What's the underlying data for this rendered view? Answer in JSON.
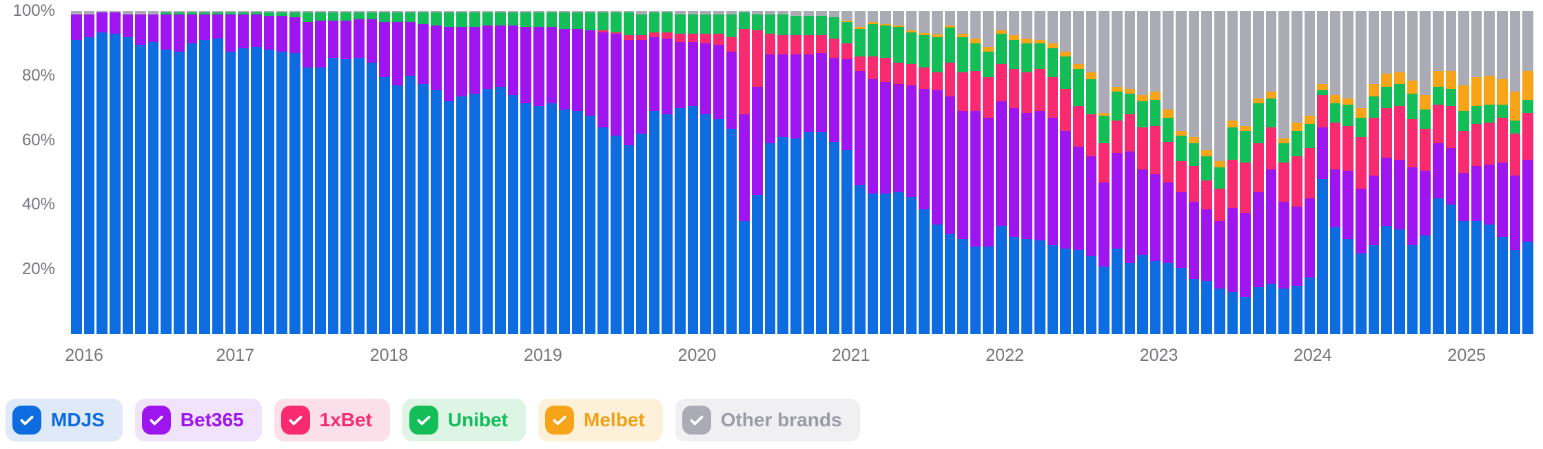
{
  "chart_data": {
    "type": "bar",
    "stacked": true,
    "normalized": "percent",
    "title": "",
    "grid": false,
    "legend_position": "bottom-left",
    "ylim": [
      0,
      100
    ],
    "y_tick_labels": [
      "100%",
      "80%",
      "60%",
      "40%",
      "20%"
    ],
    "x_tick_labels": [
      "2016",
      "2017",
      "2018",
      "2019",
      "2020",
      "2021",
      "2022",
      "2023",
      "2024",
      "2025"
    ],
    "months": [
      "2016-01",
      "2016-02",
      "2016-03",
      "2016-04",
      "2016-05",
      "2016-06",
      "2016-07",
      "2016-08",
      "2016-09",
      "2016-10",
      "2016-11",
      "2016-12",
      "2017-01",
      "2017-02",
      "2017-03",
      "2017-04",
      "2017-05",
      "2017-06",
      "2017-07",
      "2017-08",
      "2017-09",
      "2017-10",
      "2017-11",
      "2017-12",
      "2018-01",
      "2018-02",
      "2018-03",
      "2018-04",
      "2018-05",
      "2018-06",
      "2018-07",
      "2018-08",
      "2018-09",
      "2018-10",
      "2018-11",
      "2018-12",
      "2019-01",
      "2019-02",
      "2019-03",
      "2019-04",
      "2019-05",
      "2019-06",
      "2019-07",
      "2019-08",
      "2019-09",
      "2019-10",
      "2019-11",
      "2019-12",
      "2020-01",
      "2020-02",
      "2020-03",
      "2020-04",
      "2020-05",
      "2020-06",
      "2020-07",
      "2020-08",
      "2020-09",
      "2020-10",
      "2020-11",
      "2020-12",
      "2021-01",
      "2021-02",
      "2021-03",
      "2021-04",
      "2021-05",
      "2021-06",
      "2021-07",
      "2021-08",
      "2021-09",
      "2021-10",
      "2021-11",
      "2021-12",
      "2022-01",
      "2022-02",
      "2022-03",
      "2022-04",
      "2022-05",
      "2022-06",
      "2022-07",
      "2022-08",
      "2022-09",
      "2022-10",
      "2022-11",
      "2022-12",
      "2023-01",
      "2023-02",
      "2023-03",
      "2023-04",
      "2023-05",
      "2023-06",
      "2023-07",
      "2023-08",
      "2023-09",
      "2023-10",
      "2023-11",
      "2023-12",
      "2024-01",
      "2024-02",
      "2024-03",
      "2024-04",
      "2024-05",
      "2024-06",
      "2024-07",
      "2024-08",
      "2024-09",
      "2024-10",
      "2024-11",
      "2024-12",
      "2025-01",
      "2025-02",
      "2025-03",
      "2025-04",
      "2025-05",
      "2025-06"
    ],
    "series": [
      {
        "name": "MDJS",
        "color": "#0d6ce0",
        "values": [
          91,
          92,
          93.5,
          93,
          92,
          89.5,
          90.5,
          88,
          87.5,
          90,
          91,
          91.5,
          87.5,
          88.5,
          89,
          88,
          87.5,
          87,
          82.5,
          82.5,
          85.5,
          85,
          85.5,
          84,
          79.5,
          77,
          80,
          77.5,
          75.5,
          72,
          73.5,
          74.5,
          76,
          76.5,
          74,
          71.5,
          70.5,
          71.5,
          69.5,
          69,
          67.5,
          64,
          61.5,
          58.5,
          62,
          69,
          68,
          70,
          70.5,
          68,
          66.5,
          63.5,
          35,
          43,
          59,
          61,
          60.5,
          62.5,
          62.5,
          59.5,
          57,
          46,
          43.5,
          43.5,
          44,
          42.5,
          38.5,
          34,
          31,
          29.5,
          27,
          27,
          33.5,
          30,
          29.5,
          29,
          27.5,
          26.5,
          26,
          24,
          21,
          26.5,
          22,
          24.5,
          22.5,
          22,
          20.5,
          17,
          16.5,
          14,
          13,
          11.5,
          14.5,
          15.5,
          14,
          15,
          17.5,
          48,
          33,
          29.5,
          25,
          27.5,
          33.5,
          32.5,
          27.5,
          30.5,
          42,
          40,
          35,
          35,
          34,
          30,
          26,
          28.5
        ]
      },
      {
        "name": "Bet365",
        "color": "#9e15f0",
        "values": [
          8,
          7,
          6,
          6.5,
          7,
          9.5,
          8.5,
          11,
          11.5,
          9,
          8,
          7.5,
          11.5,
          10.5,
          10,
          10.5,
          11,
          11,
          14,
          14.5,
          11.5,
          12,
          12,
          13.5,
          17,
          19.5,
          16.5,
          18.5,
          20,
          23,
          21.5,
          20.5,
          19.5,
          19,
          21.5,
          23.5,
          24.5,
          23.5,
          25,
          25.5,
          26.5,
          29.5,
          31.5,
          32.5,
          29,
          23,
          23.5,
          20.5,
          20,
          22,
          23,
          24,
          33,
          33.5,
          27.5,
          25.5,
          26,
          24,
          24.5,
          26,
          28,
          35.5,
          35.5,
          34.5,
          33.5,
          34.5,
          37.5,
          41.5,
          42.5,
          39.5,
          42,
          40,
          38.5,
          40,
          39,
          40,
          39.5,
          36.5,
          32,
          31,
          26,
          29.5,
          34.5,
          26.5,
          27,
          25,
          23.5,
          24,
          22,
          21,
          26,
          26,
          29.5,
          35.5,
          27,
          24.5,
          24.5,
          16,
          18,
          21,
          20,
          21.5,
          21,
          21.5,
          24,
          20,
          17,
          17.5,
          15,
          17,
          18.5,
          23,
          23,
          25.5
        ]
      },
      {
        "name": "1xBet",
        "color": "#f92b70",
        "values": [
          0,
          0,
          0,
          0,
          0,
          0,
          0,
          0,
          0,
          0,
          0,
          0,
          0,
          0,
          0,
          0,
          0,
          0,
          0,
          0,
          0,
          0,
          0,
          0,
          0,
          0,
          0,
          0,
          0,
          0,
          0,
          0,
          0,
          0,
          0,
          0,
          0,
          0,
          0,
          0,
          0,
          0.5,
          0.5,
          1.5,
          1.5,
          1.5,
          2,
          2.5,
          2.5,
          3,
          3.5,
          4.5,
          26.5,
          17.5,
          6.5,
          6,
          6,
          6,
          5.5,
          6,
          5,
          4.5,
          7,
          7.5,
          6.5,
          6.5,
          6.5,
          5.5,
          10.5,
          12,
          12.5,
          12.5,
          11.5,
          12,
          12.5,
          13,
          12.5,
          13,
          12.5,
          13,
          12,
          10,
          11.5,
          13,
          15,
          12.5,
          9.5,
          11,
          9,
          10,
          15,
          15.5,
          15,
          13,
          12,
          15.5,
          15.5,
          10,
          14.5,
          14,
          16,
          18,
          15.5,
          16.5,
          15,
          13,
          12,
          13,
          13,
          13,
          13,
          14,
          13,
          14.5
        ]
      },
      {
        "name": "Unibet",
        "color": "#13bd57",
        "values": [
          0,
          0,
          0,
          0,
          0,
          0,
          0,
          0.5,
          0.5,
          0.5,
          0.5,
          0.5,
          0.5,
          0.5,
          0.5,
          1,
          1,
          1.5,
          3,
          2.5,
          2.5,
          2.5,
          2,
          2,
          3,
          3,
          3,
          3.5,
          4,
          4.5,
          4.5,
          4.5,
          4,
          4,
          4,
          4.5,
          4.5,
          4.5,
          5,
          5,
          5.5,
          5.5,
          6,
          7,
          6.5,
          6,
          6,
          6,
          6,
          6,
          6,
          7,
          5,
          5,
          6,
          6.5,
          6,
          6,
          6,
          6.5,
          6.5,
          8.5,
          10,
          10,
          11,
          10,
          10,
          11,
          11,
          11,
          8.5,
          8,
          9.5,
          9,
          9,
          8,
          9,
          10,
          11.5,
          11,
          8.5,
          9,
          6.5,
          8,
          8,
          7.5,
          8,
          7,
          7.5,
          6.5,
          10,
          10,
          12.5,
          9,
          6,
          8,
          7.5,
          1.5,
          6,
          6.5,
          6,
          6.5,
          6.5,
          7,
          8,
          6,
          5.5,
          5.5,
          6,
          5.5,
          5.5,
          4,
          4,
          4
        ]
      },
      {
        "name": "Melbet",
        "color": "#f8a418",
        "values": [
          0,
          0,
          0,
          0,
          0,
          0,
          0,
          0,
          0,
          0,
          0,
          0,
          0,
          0,
          0,
          0,
          0,
          0,
          0,
          0,
          0,
          0,
          0,
          0,
          0,
          0,
          0,
          0,
          0,
          0,
          0,
          0,
          0,
          0,
          0,
          0,
          0,
          0,
          0,
          0,
          0,
          0,
          0,
          0,
          0,
          0,
          0,
          0,
          0,
          0,
          0,
          0,
          0,
          0,
          0,
          0,
          0,
          0,
          0,
          0,
          0.5,
          0.5,
          0.5,
          0.5,
          0.5,
          0.5,
          0.7,
          0.7,
          0.5,
          1,
          1.5,
          1.5,
          1,
          1.5,
          1.5,
          1,
          1.5,
          1.5,
          1.5,
          2,
          1,
          1.5,
          1.5,
          2,
          2.5,
          2.5,
          1.5,
          2,
          2,
          2,
          2,
          1.5,
          1.5,
          2,
          1.5,
          2.5,
          2.5,
          2,
          2.5,
          2,
          3,
          4,
          4,
          3.5,
          4,
          4.5,
          5,
          5.5,
          8,
          9,
          9,
          8,
          9,
          9
        ]
      },
      {
        "name": "Other brands",
        "color": "#ababb5",
        "values": [
          1,
          1,
          0.5,
          0.5,
          1,
          1,
          1,
          0.5,
          0.5,
          0.5,
          0.5,
          0.5,
          0.5,
          0.5,
          0.5,
          0.5,
          0.5,
          0.5,
          0.5,
          0.5,
          0.5,
          0.5,
          0.5,
          0.5,
          0.5,
          0.5,
          0.5,
          0.5,
          0.5,
          0.5,
          0.5,
          0.5,
          0.5,
          0.5,
          0.5,
          0.5,
          0.5,
          0.5,
          0.5,
          0.5,
          0.5,
          0.5,
          0.5,
          0.5,
          1,
          0.5,
          0.5,
          1,
          1,
          1,
          1,
          1,
          0.5,
          1,
          1,
          1,
          1.5,
          1.5,
          1.5,
          2,
          3,
          5,
          3.5,
          4,
          4.5,
          6,
          6.8,
          7.3,
          4.5,
          7,
          8.5,
          11,
          6,
          7.5,
          8.5,
          9,
          10,
          12.5,
          16.5,
          19,
          31.5,
          23.5,
          24,
          26,
          25,
          30.5,
          37,
          39,
          43,
          46.5,
          34,
          35.5,
          27,
          25,
          39.5,
          34.5,
          32.5,
          22.5,
          26,
          27,
          30,
          22.5,
          19.5,
          19,
          21.5,
          26,
          18.5,
          18.5,
          23,
          20.5,
          20,
          21,
          25,
          18.5
        ]
      }
    ],
    "legend": [
      {
        "label": "MDJS",
        "checked": true,
        "color": "#0d6ce0",
        "bg": "#dfe9f8",
        "text_color": "#0d6ce0"
      },
      {
        "label": "Bet365",
        "checked": true,
        "color": "#9e15f0",
        "bg": "#f2e3fc",
        "text_color": "#9e15f0"
      },
      {
        "label": "1xBet",
        "checked": true,
        "color": "#f92b70",
        "bg": "#fce0e9",
        "text_color": "#f92b70"
      },
      {
        "label": "Unibet",
        "checked": true,
        "color": "#13bd57",
        "bg": "#def5e6",
        "text_color": "#13bd57"
      },
      {
        "label": "Melbet",
        "checked": true,
        "color": "#f8a418",
        "bg": "#fdf1d9",
        "text_color": "#f0a018"
      },
      {
        "label": "Other brands",
        "checked": true,
        "color": "#ababb5",
        "bg": "#f0f0f3",
        "text_color": "#9b9ba6"
      }
    ]
  }
}
